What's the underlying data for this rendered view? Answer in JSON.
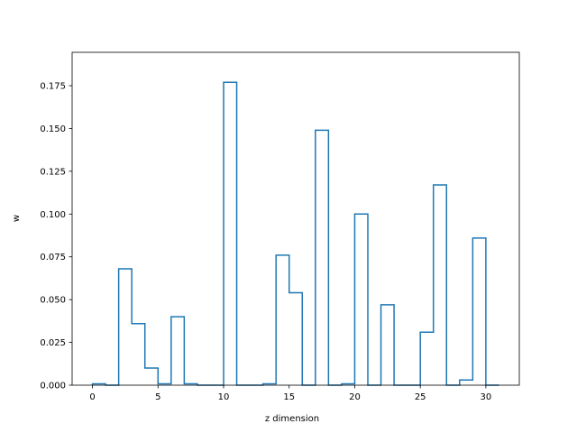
{
  "chart_data": {
    "type": "bar",
    "style": "step-histogram",
    "title": "",
    "xlabel": "z dimension",
    "ylabel": "w",
    "xlim": [
      -1.55,
      32.55
    ],
    "ylim": [
      0,
      0.1945
    ],
    "xticks": [
      0,
      5,
      10,
      15,
      20,
      25,
      30
    ],
    "yticks": [
      "0.000",
      "0.025",
      "0.050",
      "0.075",
      "0.100",
      "0.125",
      "0.150",
      "0.175"
    ],
    "grid": false,
    "legend": "none",
    "color": "#1f77b4",
    "bin_edges": [
      0,
      1,
      2,
      3,
      4,
      5,
      6,
      7,
      8,
      9,
      10,
      11,
      12,
      13,
      14,
      15,
      16,
      17,
      18,
      19,
      20,
      21,
      22,
      23,
      24,
      25,
      26,
      27,
      28,
      29,
      30,
      31
    ],
    "x": [
      0,
      1,
      2,
      3,
      4,
      5,
      6,
      7,
      8,
      9,
      10,
      11,
      12,
      13,
      14,
      15,
      16,
      17,
      18,
      19,
      20,
      21,
      22,
      23,
      24,
      25,
      26,
      27,
      28,
      29,
      30
    ],
    "values": [
      0.0008,
      0.0,
      0.068,
      0.036,
      0.01,
      0.0008,
      0.04,
      0.0008,
      0.0,
      0.0,
      0.177,
      0.0,
      0.0,
      0.0008,
      0.076,
      0.054,
      0.0,
      0.149,
      0.0,
      0.0008,
      0.1,
      0.0,
      0.047,
      0.0,
      0.0,
      0.031,
      0.117,
      0.0,
      0.003,
      0.086,
      0.0
    ]
  }
}
